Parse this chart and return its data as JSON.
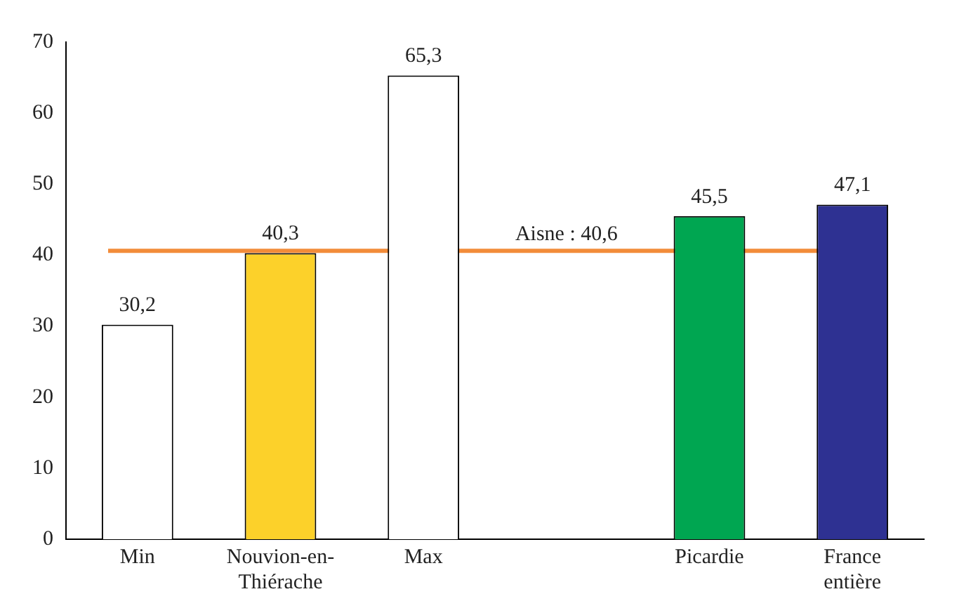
{
  "chart_data": {
    "type": "bar",
    "categories": [
      "Min",
      "Nouvion-en-Thiérache",
      "Max",
      null,
      "Picardie",
      "France entière"
    ],
    "values": [
      30.2,
      40.3,
      65.3,
      null,
      45.5,
      47.1
    ],
    "colors": [
      "#ffffff",
      "#fcd12a",
      "#ffffff",
      "#ffffff",
      "#00a651",
      "#2e3192"
    ],
    "value_labels": [
      "30,2",
      "40,3",
      "65,3",
      null,
      "45,5",
      "47,1"
    ],
    "ylim": [
      0,
      70
    ],
    "yticks": [
      0,
      10,
      20,
      30,
      40,
      50,
      60,
      70
    ],
    "ref_lines": [
      {
        "axis": "y",
        "value": 40.6,
        "label": "Aisne : 40,6",
        "color": "#f28c3a"
      }
    ],
    "grid": false,
    "legend": false
  }
}
